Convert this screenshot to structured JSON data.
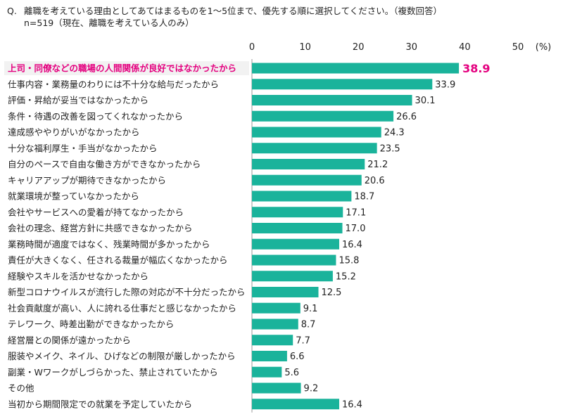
{
  "question": {
    "prefix": "Q.",
    "text": "離職を考えている理由としてあてはまるものを1～5位まで、優先する順に選択してください。（複数回答）",
    "sub": "n=519（現在、離職を考えている人のみ）"
  },
  "chart_data": {
    "type": "bar",
    "orientation": "horizontal",
    "title": "離職を考えている理由としてあてはまるものを1～5位まで、優先する順に選択してください。（複数回答）",
    "unit": "(%)",
    "xlim": [
      0,
      50
    ],
    "ticks": [
      0,
      10,
      20,
      30,
      40,
      50
    ],
    "bar_color": "#1ab39b",
    "highlight_color": "#e4007f",
    "highlight_index": 0,
    "categories": [
      "上司・同僚などの職場の人間関係が良好ではなかったから",
      "仕事内容・業務量のわりには不十分な給与だったから",
      "評価・昇給が妥当ではなかったから",
      "条件・待遇の改善を図ってくれなかったから",
      "達成感ややりがいがなかったから",
      "十分な福利厚生・手当がなかったから",
      "自分のペースで自由な働き方ができなかったから",
      "キャリアアップが期待できなかったから",
      "就業環境が整っていなかったから",
      "会社やサービスへの愛着が持てなかったから",
      "会社の理念、経営方針に共感できなかったから",
      "業務時間が適度ではなく、残業時間が多かったから",
      "責任が大きくなく、任される裁量が幅広くなかったから",
      "経験やスキルを活かせなかったから",
      "新型コロナウイルスが流行した際の対応が不十分だったから",
      "社会貢献度が高い、人に誇れる仕事だと感じなかったから",
      "テレワーク、時差出勤ができなかったから",
      "経営層との関係が遠かったから",
      "服装やメイク、ネイル、ひげなどの制限が厳しかったから",
      "副業・Wワークがしづらかった、禁止されていたから",
      "その他",
      "当初から期間限定での就業を予定していたから"
    ],
    "values": [
      38.9,
      33.9,
      30.1,
      26.6,
      24.3,
      23.5,
      21.2,
      20.6,
      18.7,
      17.1,
      17.0,
      16.4,
      15.8,
      15.2,
      12.5,
      9.1,
      8.7,
      7.7,
      6.6,
      5.6,
      9.2,
      16.4
    ],
    "value_labels": [
      "38.9",
      "33.9",
      "30.1",
      "26.6",
      "24.3",
      "23.5",
      "21.2",
      "20.6",
      "18.7",
      "17.1",
      "17.0",
      "16.4",
      "15.8",
      "15.2",
      "12.5",
      "9.1",
      "8.7",
      "7.7",
      "6.6",
      "5.6",
      "9.2",
      "16.4"
    ]
  }
}
